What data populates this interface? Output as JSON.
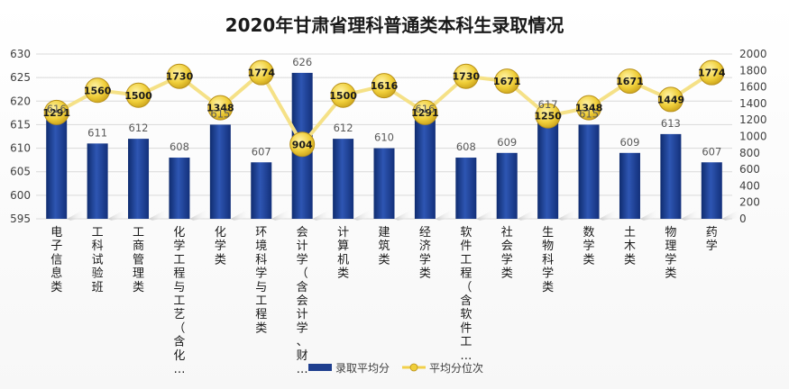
{
  "chart_data": {
    "type": "bar",
    "title": "2020年甘肃省理科普通类本科生录取情况",
    "categories": [
      "电子信息类",
      "工科试验班",
      "工商管理类",
      "化学工程与工艺（含化…",
      "化学类",
      "环境科学与工程类",
      "会计学（含会计学、财…",
      "计算机类",
      "建筑类",
      "经济学类",
      "软件工程（含软件工…",
      "社会学类",
      "生物科学类",
      "数学类",
      "土木类",
      "物理学类",
      "药学"
    ],
    "series": [
      {
        "name": "录取平均分",
        "type": "bar",
        "axis": "left",
        "color": "#1f3f8f",
        "values": [
          616,
          611,
          612,
          608,
          615,
          607,
          626,
          612,
          610,
          616,
          608,
          609,
          617,
          615,
          609,
          613,
          607
        ]
      },
      {
        "name": "平均分位次",
        "type": "line",
        "axis": "right",
        "color": "#f2d04b",
        "values": [
          1291,
          1560,
          1500,
          1730,
          1348,
          1774,
          904,
          1500,
          1616,
          1291,
          1730,
          1671,
          1250,
          1348,
          1671,
          1449,
          1774
        ]
      }
    ],
    "y_left": {
      "min": 595,
      "max": 630,
      "ticks": [
        595,
        600,
        605,
        610,
        615,
        620,
        625,
        630
      ]
    },
    "y_right": {
      "min": 0,
      "max": 2000,
      "ticks": [
        0,
        200,
        400,
        600,
        800,
        1000,
        1200,
        1400,
        1600,
        1800,
        2000
      ]
    },
    "grid": true,
    "legend": "bottom",
    "data_labels": true
  }
}
